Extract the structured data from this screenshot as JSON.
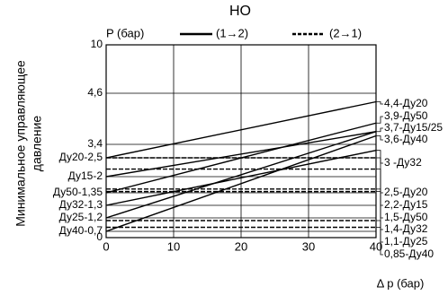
{
  "chart_data": {
    "type": "line",
    "title": "НО",
    "y_label": [
      "Минимальное управляющее",
      "давление"
    ],
    "x_label": "Δ p (бар)",
    "legend_title": "P (бар)",
    "xlim": [
      0,
      40
    ],
    "xticks": [
      0,
      10,
      20,
      30,
      40
    ],
    "ylim": [
      0,
      10
    ],
    "yticks": [
      0,
      {
        "value": 0.7,
        "label": "Ду40-0,7"
      },
      {
        "value": 1.2,
        "label": "Ду25-1,2"
      },
      {
        "value": 1.3,
        "label": "Ду32-1,3"
      },
      {
        "value": 1.35,
        "label": "Ду50-1,35"
      },
      {
        "value": 2,
        "label": "Ду15-2"
      },
      {
        "value": 2.5,
        "label": "Ду20-2,5"
      },
      {
        "value": 3.4,
        "label": "3,4"
      },
      {
        "value": 4.6,
        "label": "4,6"
      },
      10
    ],
    "grid": true,
    "series": [
      {
        "name": "(1→2)",
        "color": "#000000",
        "dashed": false,
        "lines": [
          {
            "x": [
              0,
              40
            ],
            "values": [
              2.5,
              4.4
            ],
            "label": "4,4-Ду20"
          },
          {
            "x": [
              0,
              40
            ],
            "values": [
              1.35,
              3.9
            ],
            "label": "3,9-Ду50"
          },
          {
            "x": [
              0,
              40
            ],
            "values": [
              2,
              3.7
            ],
            "label": "3,7-Ду15/25"
          },
          {
            "x": [
              0,
              40
            ],
            "values": [
              1.2,
              3.7
            ]
          },
          {
            "x": [
              0,
              40
            ],
            "values": [
              0.7,
              3.6
            ],
            "label": "3,6-Ду40"
          },
          {
            "x": [
              0,
              40
            ],
            "values": [
              1.3,
              3
            ],
            "label": "3 -Ду32"
          }
        ]
      },
      {
        "name": "(2→1)",
        "color": "#000000",
        "dashed": true,
        "lines": [
          {
            "x": [
              0,
              40
            ],
            "values": [
              2.5,
              2.5
            ],
            "label": "2,5-Ду20"
          },
          {
            "x": [
              0,
              40
            ],
            "values": [
              2.2,
              2.2
            ],
            "label": "2,2-Ду15"
          },
          {
            "x": [
              0,
              40
            ],
            "values": [
              1.5,
              1.5
            ],
            "label": "1,5-Ду50"
          },
          {
            "x": [
              0,
              40
            ],
            "values": [
              1.4,
              1.4
            ],
            "label": "1,4-Ду32"
          },
          {
            "x": [
              0,
              40
            ],
            "values": [
              1.1,
              1.1
            ],
            "label": "1,1-Ду25"
          },
          {
            "x": [
              0,
              40
            ],
            "values": [
              0.85,
              0.85
            ],
            "label": "0,85-Ду40"
          }
        ]
      }
    ]
  }
}
